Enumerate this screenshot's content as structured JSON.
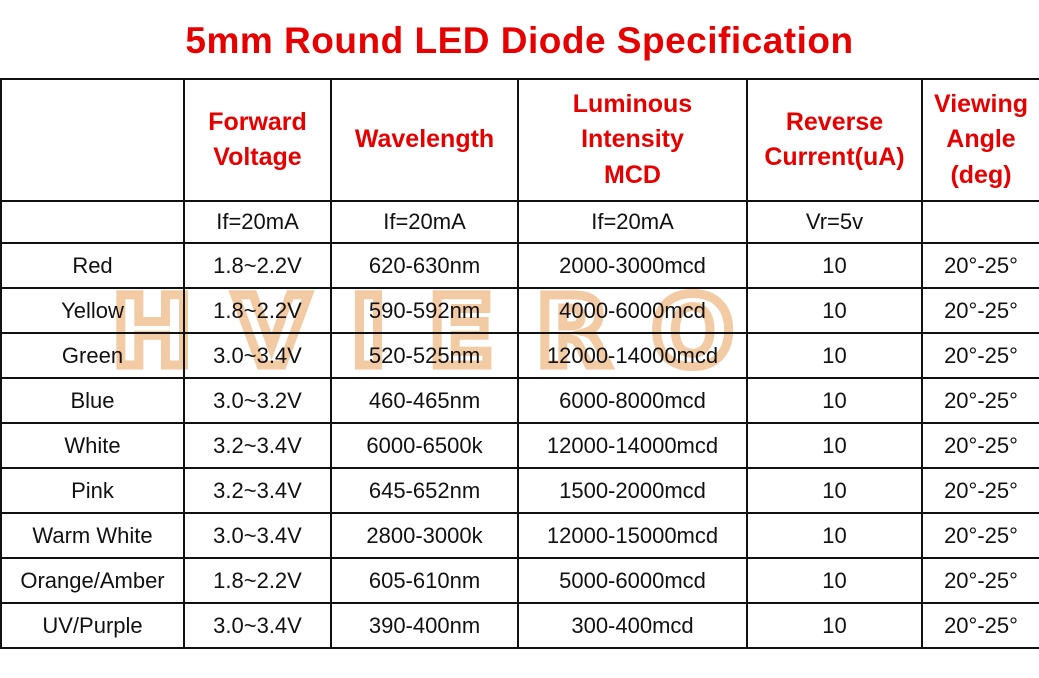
{
  "title": "5mm Round LED Diode Specification",
  "watermark": "HVIERO",
  "colors": {
    "accent_red": "#e60000",
    "text": "#111111",
    "border": "#111111",
    "watermark": "#f0bd8d",
    "background": "#ffffff"
  },
  "table": {
    "headers": [
      {
        "lines": []
      },
      {
        "lines": [
          "Forward",
          "Voltage"
        ]
      },
      {
        "lines": [
          "Wavelength"
        ]
      },
      {
        "lines": [
          "Luminous",
          "Intensity",
          "MCD"
        ]
      },
      {
        "lines": [
          "Reverse",
          "Current(uA)"
        ]
      },
      {
        "lines": [
          "Viewing",
          "Angle",
          "(deg)"
        ]
      }
    ],
    "conditions": [
      "",
      "If=20mA",
      "If=20mA",
      "If=20mA",
      "Vr=5v",
      ""
    ],
    "rows": [
      [
        "Red",
        "1.8~2.2V",
        "620-630nm",
        "2000-3000mcd",
        "10",
        "20°-25°"
      ],
      [
        "Yellow",
        "1.8~2.2V",
        "590-592nm",
        "4000-6000mcd",
        "10",
        "20°-25°"
      ],
      [
        "Green",
        "3.0~3.4V",
        "520-525nm",
        "12000-14000mcd",
        "10",
        "20°-25°"
      ],
      [
        "Blue",
        "3.0~3.2V",
        "460-465nm",
        "6000-8000mcd",
        "10",
        "20°-25°"
      ],
      [
        "White",
        "3.2~3.4V",
        "6000-6500k",
        "12000-14000mcd",
        "10",
        "20°-25°"
      ],
      [
        "Pink",
        "3.2~3.4V",
        "645-652nm",
        "1500-2000mcd",
        "10",
        "20°-25°"
      ],
      [
        "Warm White",
        "3.0~3.4V",
        "2800-3000k",
        "12000-15000mcd",
        "10",
        "20°-25°"
      ],
      [
        "Orange/Amber",
        "1.8~2.2V",
        "605-610nm",
        "5000-6000mcd",
        "10",
        "20°-25°"
      ],
      [
        "UV/Purple",
        "3.0~3.4V",
        "390-400nm",
        "300-400mcd",
        "10",
        "20°-25°"
      ]
    ]
  }
}
